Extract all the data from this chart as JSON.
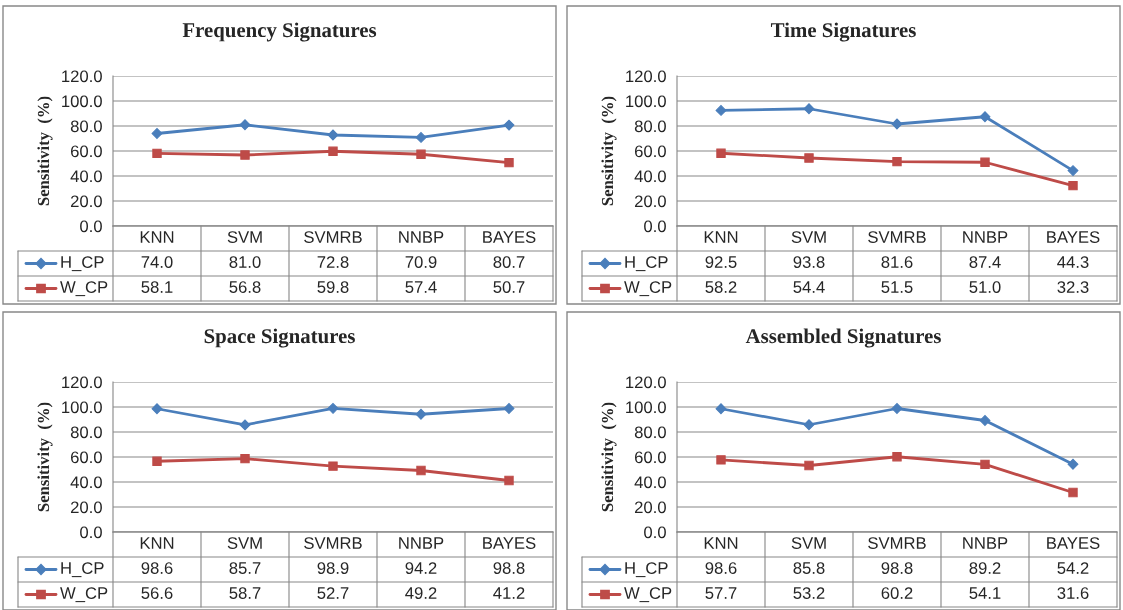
{
  "chart_data": [
    {
      "type": "line",
      "title": "Frequency Signatures",
      "ylabel": "Sensitivity  (%)",
      "categories": [
        "KNN",
        "SVM",
        "SVMRB",
        "NNBP",
        "BAYES"
      ],
      "ylim": [
        0,
        120
      ],
      "yticks": [
        {
          "value": 0,
          "label": "0.0"
        },
        {
          "value": 20,
          "label": "20.0"
        },
        {
          "value": 40,
          "label": "40.0"
        },
        {
          "value": 60,
          "label": "60.0"
        },
        {
          "value": 80,
          "label": "80.0"
        },
        {
          "value": 100,
          "label": "100.0"
        },
        {
          "value": 120,
          "label": "120.0"
        }
      ],
      "grid": "y",
      "legend": "bottom",
      "series": [
        {
          "name": "H_CP",
          "color": "#4a7ebb",
          "marker": "diamond",
          "values": [
            74.0,
            81.0,
            72.8,
            70.9,
            80.7
          ],
          "value_labels": [
            "74.0",
            "81.0",
            "72.8",
            "70.9",
            "80.7"
          ]
        },
        {
          "name": "W_CP",
          "color": "#be4b48",
          "marker": "square",
          "values": [
            58.1,
            56.8,
            59.8,
            57.4,
            50.7
          ],
          "value_labels": [
            "58.1",
            "56.8",
            "59.8",
            "57.4",
            "50.7"
          ]
        }
      ]
    },
    {
      "type": "line",
      "title": "Time Signatures",
      "ylabel": "Sensitivity  (%)",
      "categories": [
        "KNN",
        "SVM",
        "SVMRB",
        "NNBP",
        "BAYES"
      ],
      "ylim": [
        0,
        120
      ],
      "yticks": [
        {
          "value": 0,
          "label": "0.0"
        },
        {
          "value": 20,
          "label": "20.0"
        },
        {
          "value": 40,
          "label": "40.0"
        },
        {
          "value": 60,
          "label": "60.0"
        },
        {
          "value": 80,
          "label": "80.0"
        },
        {
          "value": 100,
          "label": "100.0"
        },
        {
          "value": 120,
          "label": "120.0"
        }
      ],
      "grid": "y",
      "legend": "bottom",
      "series": [
        {
          "name": "H_CP",
          "color": "#4a7ebb",
          "marker": "diamond",
          "values": [
            92.5,
            93.8,
            81.6,
            87.4,
            44.3
          ],
          "value_labels": [
            "92.5",
            "93.8",
            "81.6",
            "87.4",
            "44.3"
          ]
        },
        {
          "name": "W_CP",
          "color": "#be4b48",
          "marker": "square",
          "values": [
            58.2,
            54.4,
            51.5,
            51.0,
            32.3
          ],
          "value_labels": [
            "58.2",
            "54.4",
            "51.5",
            "51.0",
            "32.3"
          ]
        }
      ]
    },
    {
      "type": "line",
      "title": "Space Signatures",
      "ylabel": "Sensitivity  (%)",
      "categories": [
        "KNN",
        "SVM",
        "SVMRB",
        "NNBP",
        "BAYES"
      ],
      "ylim": [
        0,
        120
      ],
      "yticks": [
        {
          "value": 0,
          "label": "0.0"
        },
        {
          "value": 20,
          "label": "20.0"
        },
        {
          "value": 40,
          "label": "40.0"
        },
        {
          "value": 60,
          "label": "60.0"
        },
        {
          "value": 80,
          "label": "80.0"
        },
        {
          "value": 100,
          "label": "100.0"
        },
        {
          "value": 120,
          "label": "120.0"
        }
      ],
      "grid": "y",
      "legend": "bottom",
      "series": [
        {
          "name": "H_CP",
          "color": "#4a7ebb",
          "marker": "diamond",
          "values": [
            98.6,
            85.7,
            98.9,
            94.2,
            98.8
          ],
          "value_labels": [
            "98.6",
            "85.7",
            "98.9",
            "94.2",
            "98.8"
          ]
        },
        {
          "name": "W_CP",
          "color": "#be4b48",
          "marker": "square",
          "values": [
            56.6,
            58.7,
            52.7,
            49.2,
            41.2
          ],
          "value_labels": [
            "56.6",
            "58.7",
            "52.7",
            "49.2",
            "41.2"
          ]
        }
      ]
    },
    {
      "type": "line",
      "title": "Assembled Signatures",
      "ylabel": "Sensitivity  (%)",
      "categories": [
        "KNN",
        "SVM",
        "SVMRB",
        "NNBP",
        "BAYES"
      ],
      "ylim": [
        0,
        120
      ],
      "yticks": [
        {
          "value": 0,
          "label": "0.0"
        },
        {
          "value": 20,
          "label": "20.0"
        },
        {
          "value": 40,
          "label": "40.0"
        },
        {
          "value": 60,
          "label": "60.0"
        },
        {
          "value": 80,
          "label": "80.0"
        },
        {
          "value": 100,
          "label": "100.0"
        },
        {
          "value": 120,
          "label": "120.0"
        }
      ],
      "grid": "y",
      "legend": "bottom",
      "series": [
        {
          "name": "H_CP",
          "color": "#4a7ebb",
          "marker": "diamond",
          "values": [
            98.6,
            85.8,
            98.8,
            89.2,
            54.2
          ],
          "value_labels": [
            "98.6",
            "85.8",
            "98.8",
            "89.2",
            "54.2"
          ]
        },
        {
          "name": "W_CP",
          "color": "#be4b48",
          "marker": "square",
          "values": [
            57.7,
            53.2,
            60.2,
            54.1,
            31.6
          ],
          "value_labels": [
            "57.7",
            "53.2",
            "60.2",
            "54.1",
            "31.6"
          ]
        }
      ]
    }
  ]
}
